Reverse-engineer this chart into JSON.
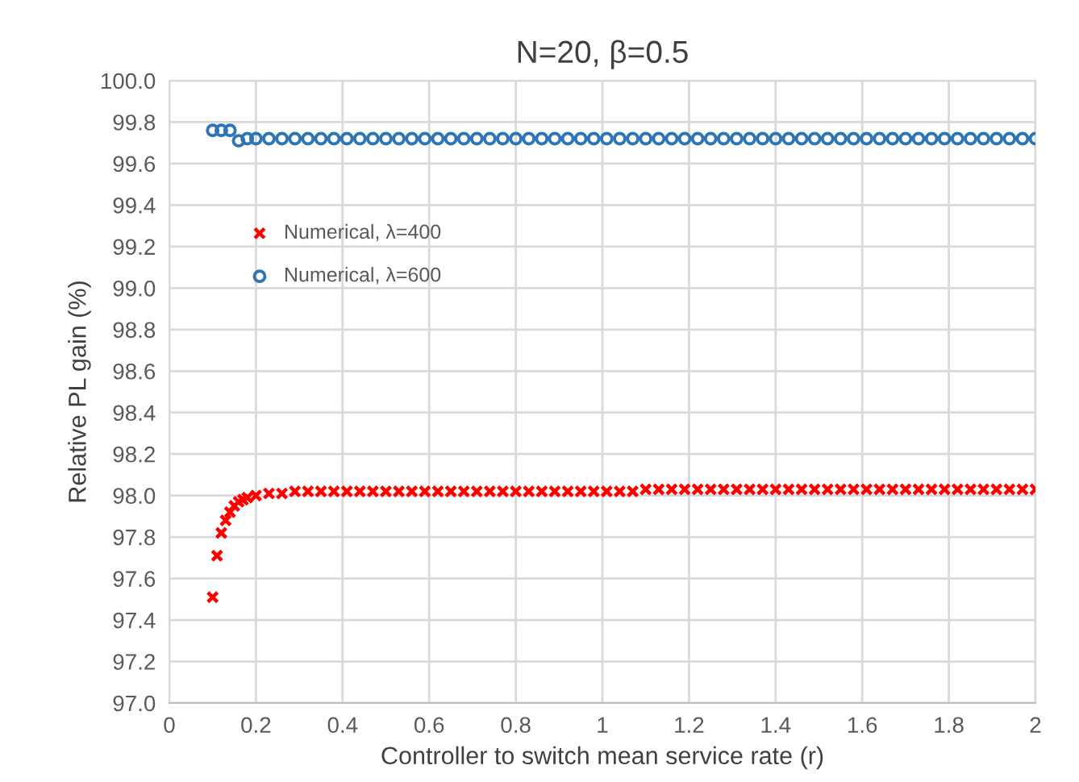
{
  "chart_data": {
    "type": "scatter",
    "title": "N=20, β=0.5",
    "xlabel": "Controller to switch mean service rate (r)",
    "ylabel": "Relative PL gain (%)",
    "xlim": [
      0,
      2
    ],
    "xticks": [
      0,
      0.2,
      0.4,
      0.6,
      0.8,
      1,
      1.2,
      1.4,
      1.6,
      1.8,
      2
    ],
    "ylim": [
      97.0,
      100.0
    ],
    "yticks": [
      {
        "value": 97.0,
        "label": "97.0"
      },
      97.2,
      97.4,
      97.6,
      97.8,
      {
        "value": 98.0,
        "label": "98.0"
      },
      98.2,
      98.4,
      98.6,
      98.8,
      {
        "value": 99.0,
        "label": "99.0"
      },
      99.2,
      99.4,
      99.6,
      99.8,
      {
        "value": 100.0,
        "label": "100.0"
      }
    ],
    "grid": true,
    "legend": "left",
    "series": [
      {
        "name": "Numerical, λ=400",
        "color": "#ff0000",
        "marker": "cross",
        "x": [
          0.1,
          0.11,
          0.12,
          0.13,
          0.14,
          0.15,
          0.16,
          0.17,
          0.18,
          0.2,
          0.23,
          0.26,
          0.29,
          0.32,
          0.35,
          0.38,
          0.41,
          0.44,
          0.47,
          0.5,
          0.53,
          0.56,
          0.59,
          0.62,
          0.65,
          0.68,
          0.71,
          0.74,
          0.77,
          0.8,
          0.83,
          0.86,
          0.89,
          0.92,
          0.95,
          0.98,
          1.01,
          1.04,
          1.07,
          1.1,
          1.13,
          1.16,
          1.19,
          1.22,
          1.25,
          1.28,
          1.31,
          1.34,
          1.37,
          1.4,
          1.43,
          1.46,
          1.49,
          1.52,
          1.55,
          1.58,
          1.61,
          1.64,
          1.67,
          1.7,
          1.73,
          1.76,
          1.79,
          1.82,
          1.85,
          1.88,
          1.91,
          1.94,
          1.97,
          2.0
        ],
        "values": [
          97.51,
          97.71,
          97.82,
          97.88,
          97.92,
          97.95,
          97.97,
          97.98,
          97.99,
          98.0,
          98.01,
          98.01,
          98.02,
          98.02,
          98.02,
          98.02,
          98.02,
          98.02,
          98.02,
          98.02,
          98.02,
          98.02,
          98.02,
          98.02,
          98.02,
          98.02,
          98.02,
          98.02,
          98.02,
          98.02,
          98.02,
          98.02,
          98.02,
          98.02,
          98.02,
          98.02,
          98.02,
          98.02,
          98.02,
          98.03,
          98.03,
          98.03,
          98.03,
          98.03,
          98.03,
          98.03,
          98.03,
          98.03,
          98.03,
          98.03,
          98.03,
          98.03,
          98.03,
          98.03,
          98.03,
          98.03,
          98.03,
          98.03,
          98.03,
          98.03,
          98.03,
          98.03,
          98.03,
          98.03,
          98.03,
          98.03,
          98.03,
          98.03,
          98.03,
          98.03
        ]
      },
      {
        "name": "Numerical, λ=600",
        "color": "#2e75b6",
        "marker": "circle",
        "x": [
          0.1,
          0.12,
          0.14,
          0.16,
          0.18,
          0.2,
          0.23,
          0.26,
          0.29,
          0.32,
          0.35,
          0.38,
          0.41,
          0.44,
          0.47,
          0.5,
          0.53,
          0.56,
          0.59,
          0.62,
          0.65,
          0.68,
          0.71,
          0.74,
          0.77,
          0.8,
          0.83,
          0.86,
          0.89,
          0.92,
          0.95,
          0.98,
          1.01,
          1.04,
          1.07,
          1.1,
          1.13,
          1.16,
          1.19,
          1.22,
          1.25,
          1.28,
          1.31,
          1.34,
          1.37,
          1.4,
          1.43,
          1.46,
          1.49,
          1.52,
          1.55,
          1.58,
          1.61,
          1.64,
          1.67,
          1.7,
          1.73,
          1.76,
          1.79,
          1.82,
          1.85,
          1.88,
          1.91,
          1.94,
          1.97,
          2.0
        ],
        "values": [
          99.76,
          99.76,
          99.76,
          99.71,
          99.72,
          99.72,
          99.72,
          99.72,
          99.72,
          99.72,
          99.72,
          99.72,
          99.72,
          99.72,
          99.72,
          99.72,
          99.72,
          99.72,
          99.72,
          99.72,
          99.72,
          99.72,
          99.72,
          99.72,
          99.72,
          99.72,
          99.72,
          99.72,
          99.72,
          99.72,
          99.72,
          99.72,
          99.72,
          99.72,
          99.72,
          99.72,
          99.72,
          99.72,
          99.72,
          99.72,
          99.72,
          99.72,
          99.72,
          99.72,
          99.72,
          99.72,
          99.72,
          99.72,
          99.72,
          99.72,
          99.72,
          99.72,
          99.72,
          99.72,
          99.72,
          99.72,
          99.72,
          99.72,
          99.72,
          99.72,
          99.72,
          99.72,
          99.72,
          99.72,
          99.72,
          99.72
        ]
      }
    ]
  }
}
